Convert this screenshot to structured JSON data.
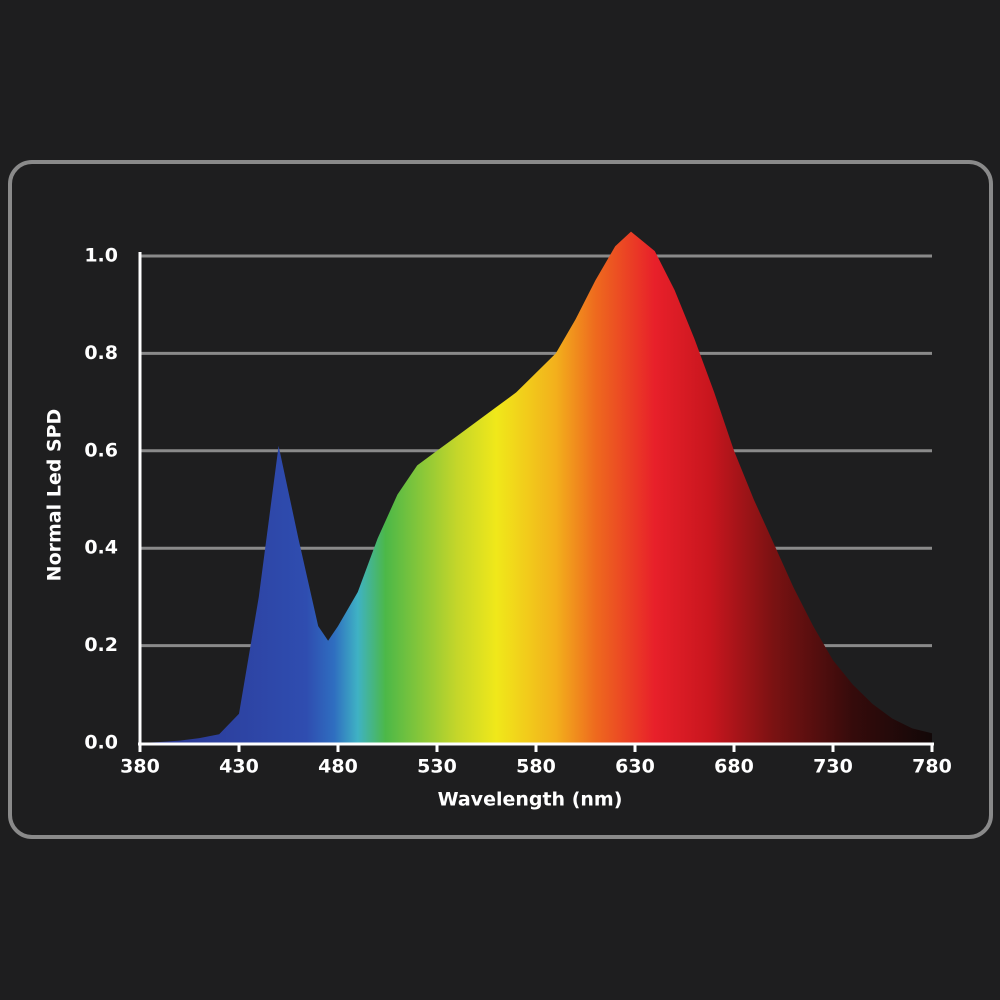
{
  "chart_data": {
    "type": "area",
    "x_label": "Wavelength (nm)",
    "y_label": "Normal Led SPD",
    "x": [
      380,
      390,
      400,
      410,
      420,
      430,
      440,
      450,
      460,
      470,
      475,
      480,
      490,
      500,
      510,
      520,
      530,
      540,
      550,
      560,
      570,
      580,
      590,
      600,
      610,
      620,
      628,
      640,
      650,
      660,
      670,
      680,
      690,
      700,
      710,
      720,
      730,
      740,
      750,
      760,
      770,
      780
    ],
    "values": [
      0,
      0.002,
      0.005,
      0.01,
      0.018,
      0.06,
      0.3,
      0.61,
      0.42,
      0.24,
      0.21,
      0.24,
      0.31,
      0.42,
      0.51,
      0.57,
      0.6,
      0.63,
      0.66,
      0.69,
      0.72,
      0.76,
      0.8,
      0.87,
      0.95,
      1.02,
      1.05,
      1.01,
      0.93,
      0.83,
      0.72,
      0.6,
      0.5,
      0.41,
      0.32,
      0.24,
      0.17,
      0.12,
      0.08,
      0.05,
      0.03,
      0.02
    ],
    "xlim": [
      380,
      780
    ],
    "ylim": [
      0,
      1
    ],
    "xticks": [
      380,
      430,
      480,
      530,
      580,
      630,
      680,
      730,
      780
    ],
    "yticks": [
      {
        "value": 0,
        "label": "0.0"
      },
      0.2,
      0.4,
      0.6,
      0.8,
      {
        "value": 1,
        "label": "1.0"
      }
    ],
    "grid": true
  }
}
